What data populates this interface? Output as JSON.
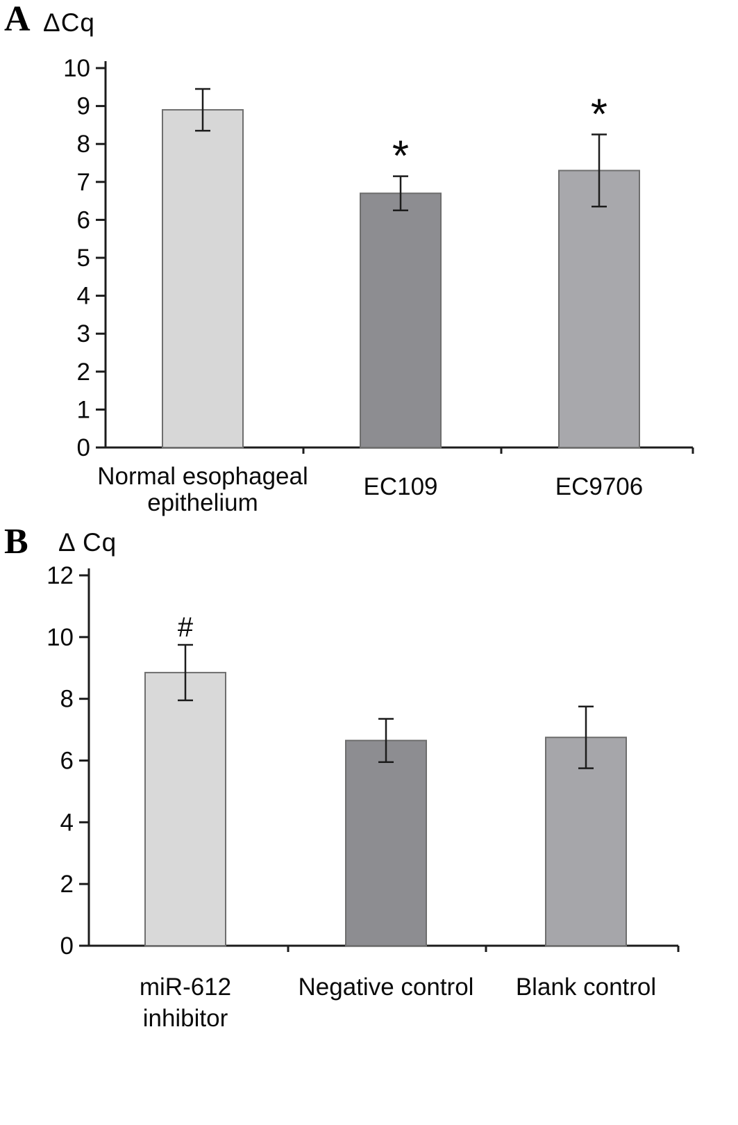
{
  "style": {
    "background": "#ffffff",
    "axis_color": "#1c1c1c",
    "bar_stroke": "#6e6e6e",
    "text_color": "#0a0a0a"
  },
  "chart_data": [
    {
      "type": "bar",
      "panel_label": "A",
      "title": "",
      "ylabel": "ΔCq",
      "xlabel": "",
      "ylim": [
        0,
        10
      ],
      "ytick_step": 1,
      "categories": [
        "Normal esophageal\nepithelium",
        "EC109",
        "EC9706"
      ],
      "values": [
        8.9,
        6.7,
        7.3
      ],
      "errors": [
        0.55,
        0.45,
        0.95
      ],
      "annotations": [
        "",
        "*",
        "*"
      ],
      "bar_colors": [
        "#d7d7d7",
        "#8d8d91",
        "#a8a8ac"
      ],
      "grid": false,
      "legend": null
    },
    {
      "type": "bar",
      "panel_label": "B",
      "title": "",
      "ylabel": "Δ Cq",
      "xlabel": "",
      "ylim": [
        0,
        12
      ],
      "ytick_step": 2,
      "categories": [
        "miR-612\ninhibitor",
        "Negative control",
        "Blank control"
      ],
      "values": [
        8.85,
        6.65,
        6.75
      ],
      "errors": [
        0.9,
        0.7,
        1.0
      ],
      "annotations": [
        "#",
        "",
        ""
      ],
      "bar_colors": [
        "#d9d9d9",
        "#8d8d91",
        "#a6a6aa"
      ],
      "grid": false,
      "legend": null
    }
  ]
}
